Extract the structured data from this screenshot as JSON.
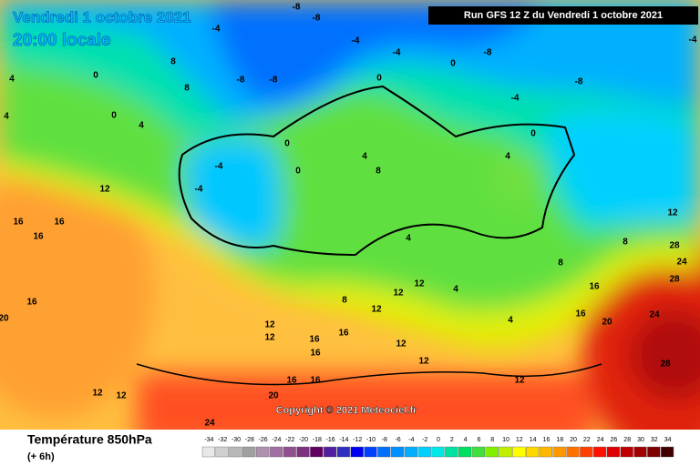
{
  "header": {
    "date": "Vendredi 1 octobre 2021",
    "time": "20:00 locale",
    "run": "Run GFS 12 Z du Vendredi 1 octobre 2021"
  },
  "copyright": "Copyright © 2021 Meteociel.fr",
  "footer": {
    "title": "Température 850hPa",
    "lead": "(+ 6h)"
  },
  "colorbar": {
    "labels": [
      -34,
      -32,
      -30,
      -28,
      -26,
      -24,
      -22,
      -20,
      -18,
      -16,
      -14,
      -12,
      -10,
      -8,
      -6,
      -4,
      -2,
      0,
      2,
      4,
      6,
      8,
      10,
      12,
      14,
      16,
      18,
      20,
      22,
      24,
      26,
      28,
      30,
      32,
      34
    ],
    "colors": [
      "#e8e8e8",
      "#d0d0d0",
      "#b8b8b8",
      "#a0a0a0",
      "#b090b0",
      "#a070a0",
      "#905090",
      "#803080",
      "#600060",
      "#5020a0",
      "#3030c0",
      "#0000f0",
      "#0040ff",
      "#0070ff",
      "#0090ff",
      "#00b0ff",
      "#00d0ff",
      "#00e8e8",
      "#00e0a0",
      "#00e060",
      "#40e040",
      "#80f000",
      "#c0f000",
      "#ffff00",
      "#ffd800",
      "#ffb800",
      "#ff9800",
      "#ff7000",
      "#ff4000",
      "#ff1000",
      "#e00000",
      "#c00000",
      "#a00000",
      "#800000",
      "#400000"
    ]
  },
  "map_labels": [
    4,
    4,
    0,
    0,
    4,
    8,
    8,
    -4,
    -8,
    -8,
    -8,
    -8,
    -4,
    -4,
    0,
    -8,
    -4,
    -8,
    -4,
    -4,
    -4,
    0,
    0,
    4,
    8,
    0,
    0,
    4,
    12,
    16,
    16,
    16,
    16,
    8,
    12,
    12,
    12,
    12,
    12,
    16,
    16,
    12,
    16,
    16,
    16,
    12,
    12,
    16,
    16,
    20,
    24,
    24,
    28,
    28,
    28,
    8,
    12,
    8,
    20,
    24,
    12,
    12,
    20,
    4,
    4,
    4
  ]
}
